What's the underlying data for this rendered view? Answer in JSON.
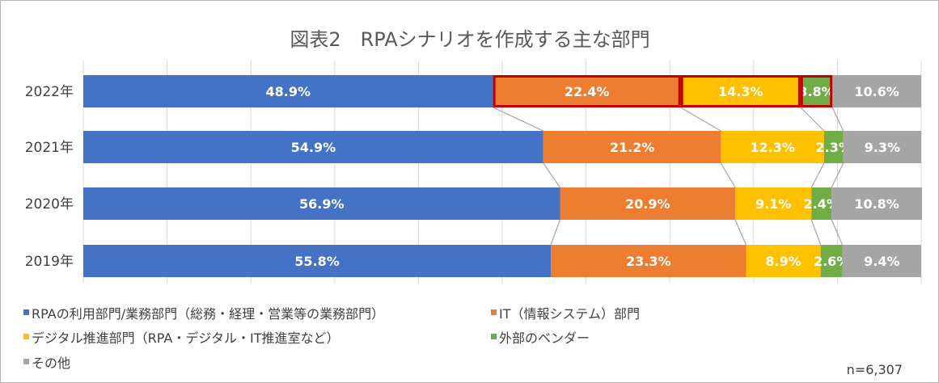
{
  "chart_data": {
    "type": "bar",
    "orientation": "horizontal",
    "stacked": "100%",
    "title": "図表2　RPAシナリオを作成する主な部門",
    "categories": [
      "2022年",
      "2021年",
      "2020年",
      "2019年"
    ],
    "series": [
      {
        "name": "RPAの利用部門/業務部門（総務・経理・営業等の業務部門）",
        "color": "#4472c4",
        "values": [
          48.9,
          54.9,
          56.9,
          55.8
        ],
        "labels": [
          "48.9%",
          "54.9%",
          "56.9%",
          "55.8%"
        ]
      },
      {
        "name": "IT（情報システム）部門",
        "color": "#ed7d31",
        "values": [
          22.4,
          21.2,
          20.9,
          23.3
        ],
        "labels": [
          "22.4%",
          "21.2%",
          "20.9%",
          "23.3%"
        ]
      },
      {
        "name": "デジタル推進部門（RPA・デジタル・IT推進室など）",
        "color": "#ffc000",
        "values": [
          14.3,
          12.3,
          9.1,
          8.9
        ],
        "labels": [
          "14.3%",
          "12.3%",
          "9.1%",
          "8.9%"
        ]
      },
      {
        "name": "外部のベンダー",
        "color": "#70ad47",
        "values": [
          3.8,
          2.3,
          2.4,
          2.6
        ],
        "labels": [
          "3.8%",
          "2.3%",
          "2.4%",
          "2.6%"
        ]
      },
      {
        "name": "その他",
        "color": "#a5a5a5",
        "values": [
          10.6,
          9.3,
          10.8,
          9.4
        ],
        "labels": [
          "10.6%",
          "9.3%",
          "10.8%",
          "9.4%"
        ]
      }
    ],
    "xlim": [
      0,
      100
    ],
    "highlighted": {
      "category": "2022年",
      "series": [
        "IT（情報システム）部門",
        "デジタル推進部門（RPA・デジタル・IT推進室など）",
        "外部のベンダー"
      ],
      "color": "#c00000"
    },
    "series_lines": true,
    "legend": "bottom",
    "note": "n=6,307"
  }
}
